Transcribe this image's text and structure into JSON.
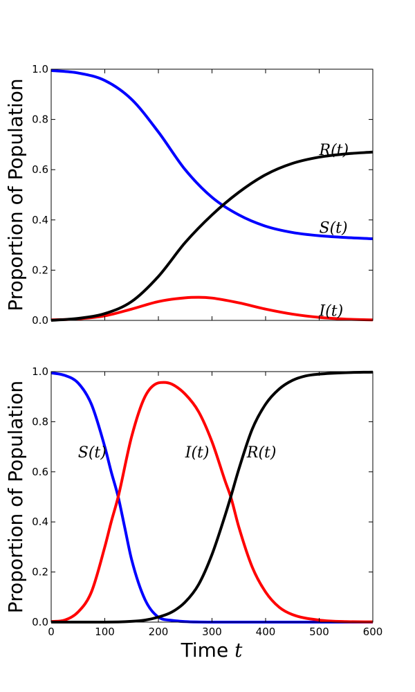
{
  "colors": {
    "S": "#0000ff",
    "I": "#ff0000",
    "R": "#000000"
  },
  "xlabel_text": "Time ",
  "xlabel_var": "t",
  "chart_data": [
    {
      "type": "line",
      "ylabel": "Proportion of Population",
      "xlim": [
        0,
        600
      ],
      "ylim": [
        0,
        1.0
      ],
      "xticks": [
        0,
        100,
        200,
        300,
        400,
        500,
        600
      ],
      "yticks": [
        "0.0",
        "0.2",
        "0.4",
        "0.6",
        "0.8",
        "1.0"
      ],
      "show_xtick_labels": false,
      "series": [
        {
          "name": "S(t)",
          "key": "S",
          "x": [
            0,
            50,
            100,
            150,
            200,
            250,
            300,
            350,
            400,
            450,
            500,
            550,
            600
          ],
          "y": [
            0.995,
            0.985,
            0.955,
            0.88,
            0.75,
            0.6,
            0.49,
            0.42,
            0.375,
            0.35,
            0.337,
            0.33,
            0.325
          ]
        },
        {
          "name": "I(t)",
          "key": "I",
          "x": [
            0,
            50,
            100,
            150,
            200,
            250,
            275,
            300,
            350,
            400,
            450,
            500,
            550,
            600
          ],
          "y": [
            0.002,
            0.006,
            0.018,
            0.045,
            0.075,
            0.09,
            0.092,
            0.089,
            0.07,
            0.045,
            0.025,
            0.012,
            0.005,
            0.002
          ]
        },
        {
          "name": "R(t)",
          "key": "R",
          "x": [
            0,
            50,
            100,
            150,
            200,
            250,
            300,
            350,
            400,
            450,
            500,
            550,
            600
          ],
          "y": [
            0.0,
            0.008,
            0.027,
            0.075,
            0.175,
            0.31,
            0.42,
            0.51,
            0.58,
            0.625,
            0.65,
            0.663,
            0.67
          ]
        }
      ],
      "annotations": [
        {
          "text": "R(t)",
          "x": 500,
          "y": 0.68
        },
        {
          "text": "S(t)",
          "x": 500,
          "y": 0.37
        },
        {
          "text": "I(t)",
          "x": 500,
          "y": 0.04
        }
      ]
    },
    {
      "type": "line",
      "ylabel": "Proportion of Population",
      "xlim": [
        0,
        600
      ],
      "ylim": [
        0,
        1.0
      ],
      "xticks": [
        0,
        100,
        200,
        300,
        400,
        500,
        600
      ],
      "xtick_labels": [
        "0",
        "100",
        "200",
        "300",
        "400",
        "500",
        "600"
      ],
      "yticks": [
        "0.0",
        "0.2",
        "0.4",
        "0.6",
        "0.8",
        "1.0"
      ],
      "show_xtick_labels": true,
      "series": [
        {
          "name": "S(t)",
          "key": "S",
          "x": [
            0,
            25,
            50,
            75,
            100,
            112,
            125,
            137,
            150,
            175,
            200,
            225,
            250,
            300,
            400,
            500,
            600
          ],
          "y": [
            0.995,
            0.985,
            0.955,
            0.87,
            0.7,
            0.6,
            0.5,
            0.38,
            0.25,
            0.09,
            0.02,
            0.007,
            0.002,
            0.0,
            0.0,
            0.0,
            0.0
          ]
        },
        {
          "name": "I(t)",
          "key": "I",
          "x": [
            0,
            25,
            50,
            75,
            100,
            112,
            125,
            150,
            175,
            200,
            210,
            225,
            250,
            275,
            300,
            325,
            335,
            350,
            375,
            400,
            425,
            450,
            500,
            550,
            600
          ],
          "y": [
            0.002,
            0.008,
            0.04,
            0.12,
            0.3,
            0.4,
            0.5,
            0.74,
            0.9,
            0.955,
            0.957,
            0.95,
            0.91,
            0.84,
            0.72,
            0.56,
            0.5,
            0.38,
            0.22,
            0.12,
            0.06,
            0.03,
            0.008,
            0.002,
            0.001
          ]
        },
        {
          "name": "R(t)",
          "key": "R",
          "x": [
            0,
            100,
            150,
            175,
            200,
            225,
            250,
            275,
            300,
            325,
            335,
            350,
            375,
            400,
            425,
            450,
            475,
            500,
            550,
            600
          ],
          "y": [
            0.0,
            0.0,
            0.003,
            0.008,
            0.02,
            0.04,
            0.08,
            0.15,
            0.27,
            0.43,
            0.5,
            0.61,
            0.77,
            0.87,
            0.93,
            0.965,
            0.983,
            0.99,
            0.996,
            0.998
          ]
        }
      ],
      "annotations": [
        {
          "text": "S(t)",
          "x": 50,
          "y": 0.68
        },
        {
          "text": "I(t)",
          "x": 250,
          "y": 0.68
        },
        {
          "text": "R(t)",
          "x": 365,
          "y": 0.68
        }
      ]
    }
  ]
}
